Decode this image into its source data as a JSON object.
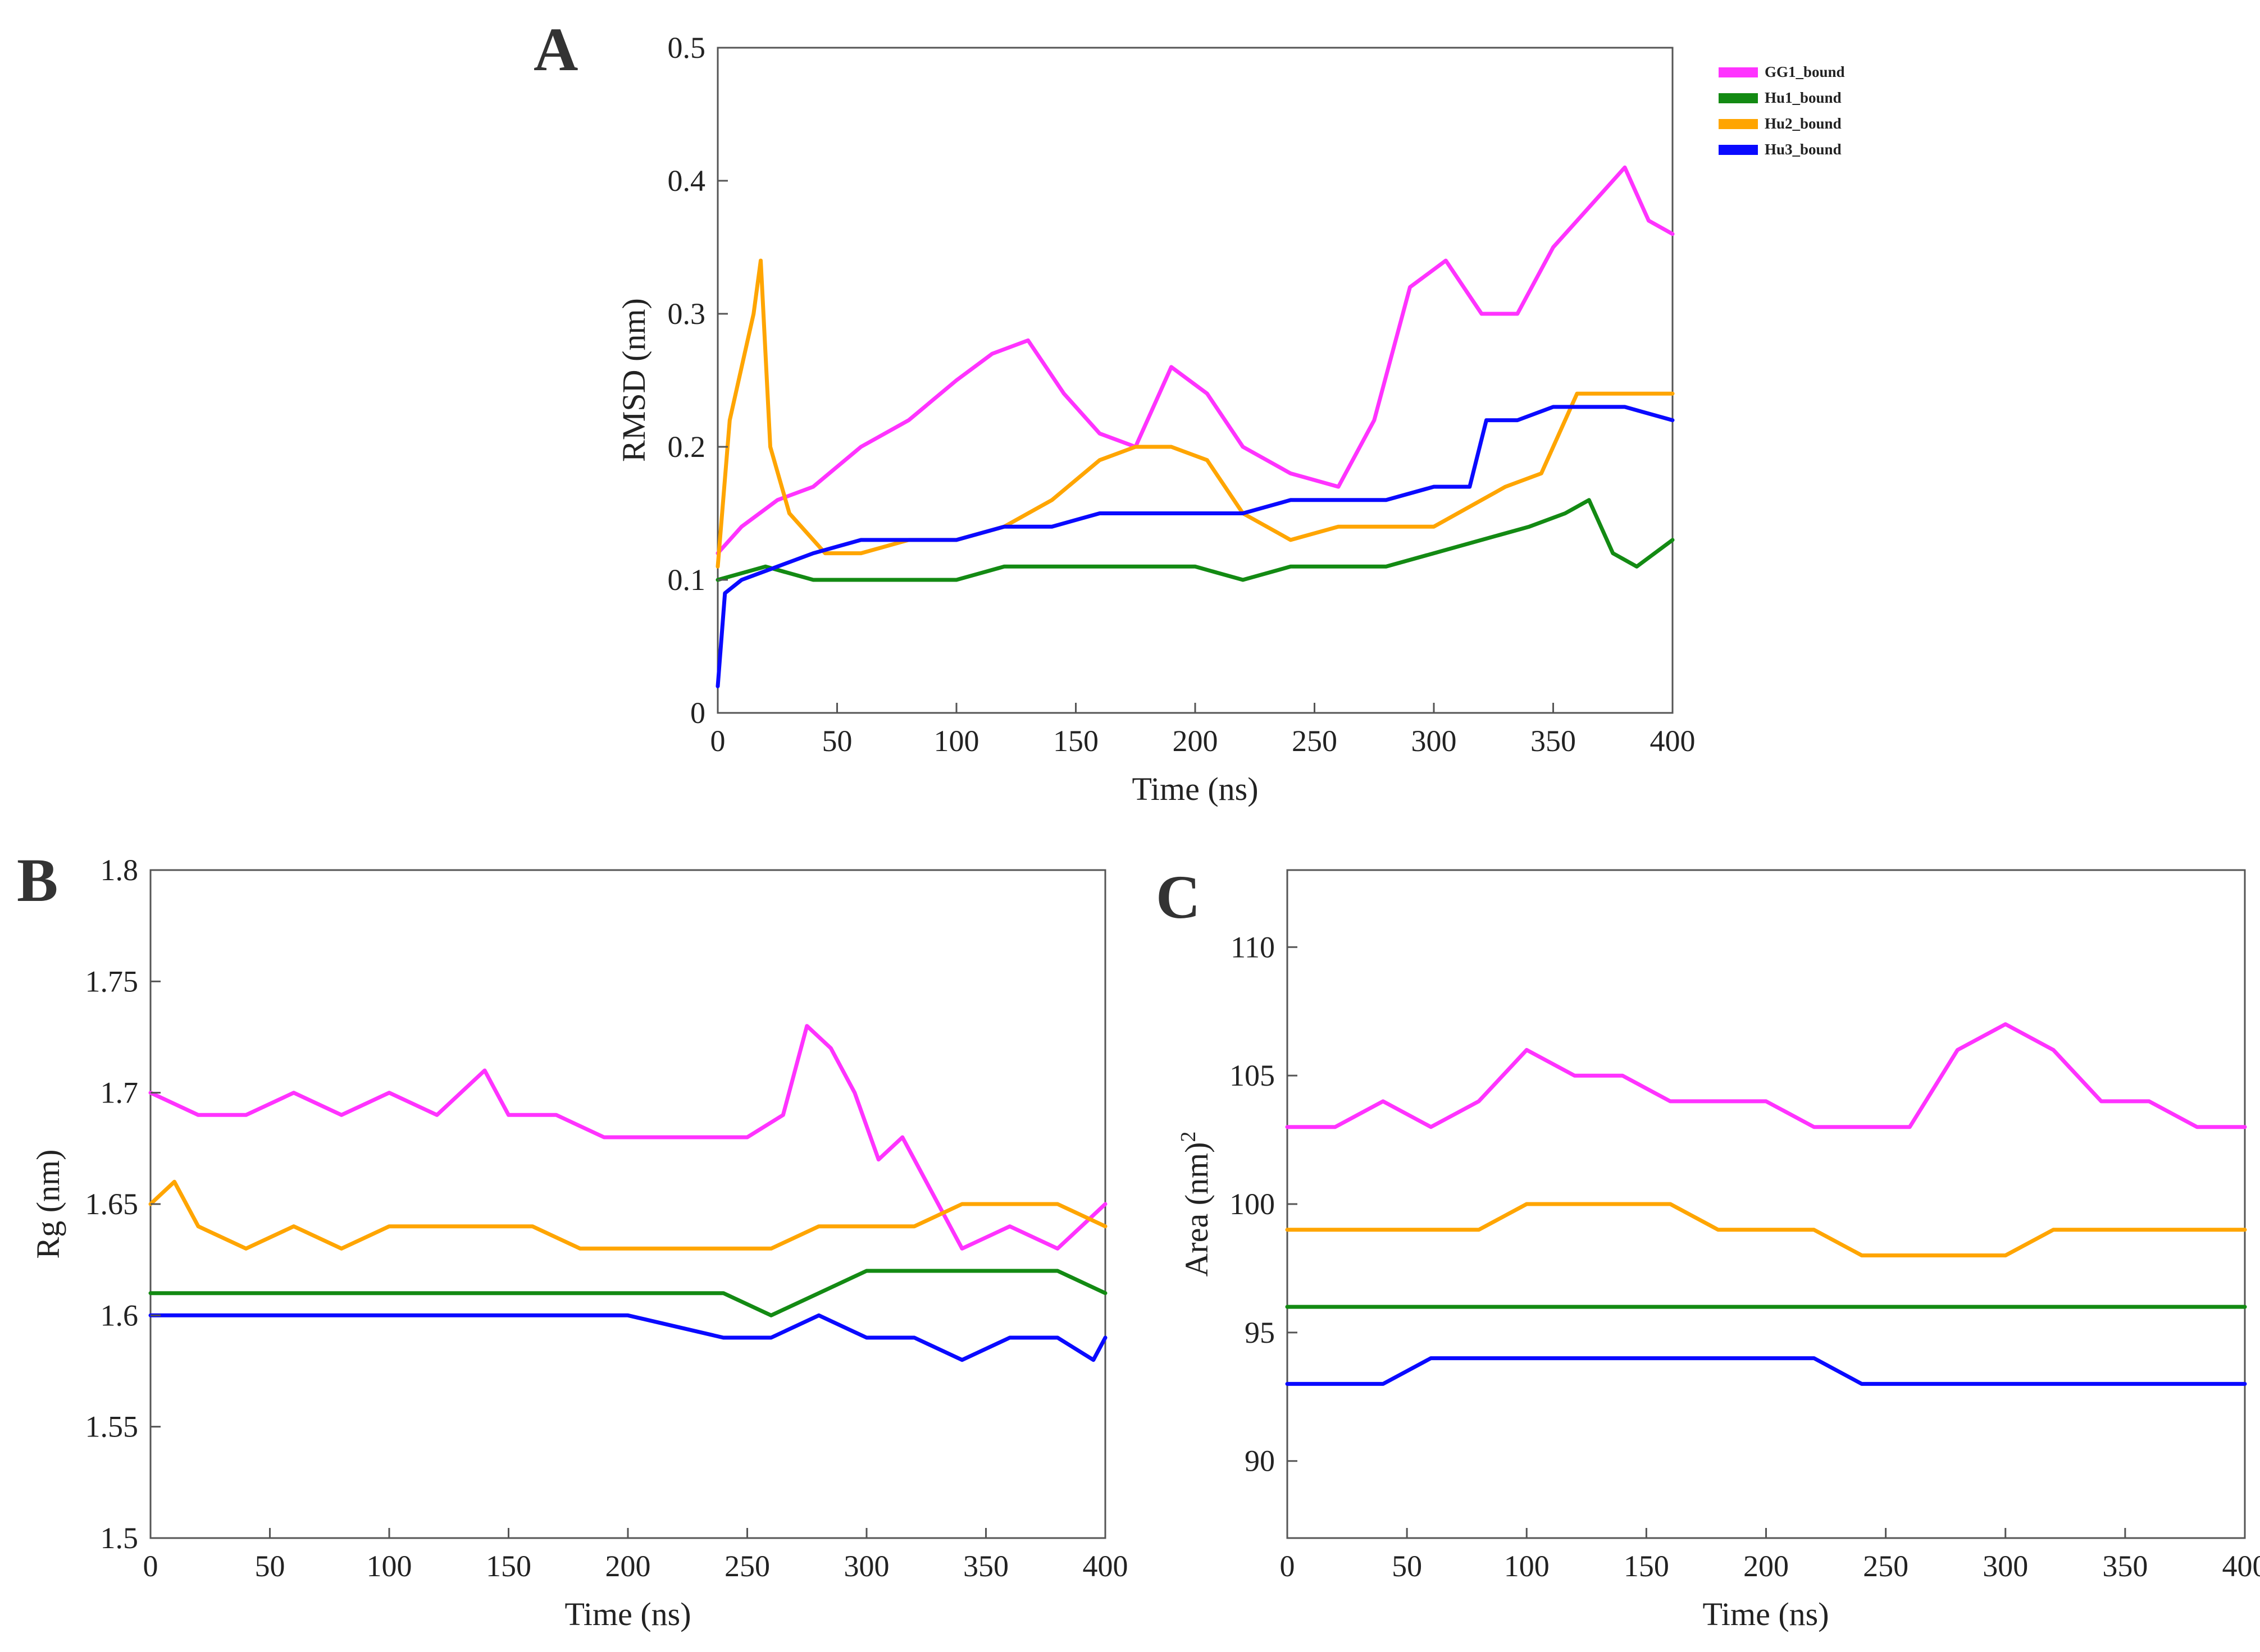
{
  "panels": [
    {
      "letter": "A",
      "chart_data": {
        "type": "line",
        "xlabel": "Time (ns)",
        "ylabel": "RMSD (nm)",
        "xlim": [
          0,
          400
        ],
        "ylim": [
          0,
          0.5
        ],
        "xticks": [
          "0",
          "50",
          "100",
          "150",
          "200",
          "250",
          "300",
          "350",
          "400"
        ],
        "yticks": [
          "0",
          "0.1",
          "0.2",
          "0.3",
          "0.4",
          "0.5"
        ],
        "legend_position": "outside-top-right",
        "series": [
          {
            "name": "GG1_bound",
            "color": "#ff33ff",
            "x": [
              0,
              10,
              25,
              40,
              60,
              80,
              100,
              115,
              130,
              145,
              160,
              175,
              190,
              205,
              220,
              240,
              260,
              275,
              290,
              305,
              320,
              335,
              350,
              365,
              380,
              390,
              400
            ],
            "y": [
              0.12,
              0.14,
              0.16,
              0.17,
              0.2,
              0.22,
              0.25,
              0.27,
              0.28,
              0.24,
              0.21,
              0.2,
              0.26,
              0.24,
              0.2,
              0.18,
              0.17,
              0.22,
              0.32,
              0.34,
              0.3,
              0.3,
              0.35,
              0.38,
              0.41,
              0.37,
              0.36
            ]
          },
          {
            "name": "Hu1_bound",
            "color": "#138a13",
            "x": [
              0,
              20,
              40,
              60,
              80,
              100,
              120,
              140,
              160,
              180,
              200,
              220,
              240,
              260,
              280,
              300,
              320,
              340,
              355,
              365,
              375,
              385,
              400
            ],
            "y": [
              0.1,
              0.11,
              0.1,
              0.1,
              0.1,
              0.1,
              0.11,
              0.11,
              0.11,
              0.11,
              0.11,
              0.1,
              0.11,
              0.11,
              0.11,
              0.12,
              0.13,
              0.14,
              0.15,
              0.16,
              0.12,
              0.11,
              0.13
            ]
          },
          {
            "name": "Hu2_bound",
            "color": "#ffa500",
            "x": [
              0,
              5,
              10,
              15,
              18,
              22,
              30,
              45,
              60,
              80,
              100,
              120,
              140,
              160,
              175,
              190,
              205,
              220,
              240,
              260,
              280,
              300,
              320,
              330,
              345,
              360,
              375,
              390,
              400
            ],
            "y": [
              0.11,
              0.22,
              0.26,
              0.3,
              0.34,
              0.2,
              0.15,
              0.12,
              0.12,
              0.13,
              0.13,
              0.14,
              0.16,
              0.19,
              0.2,
              0.2,
              0.19,
              0.15,
              0.13,
              0.14,
              0.14,
              0.14,
              0.16,
              0.17,
              0.18,
              0.24,
              0.24,
              0.24,
              0.24
            ]
          },
          {
            "name": "Hu3_bound",
            "color": "#0a0aff",
            "x": [
              0,
              3,
              10,
              25,
              40,
              60,
              80,
              100,
              120,
              140,
              160,
              180,
              200,
              220,
              240,
              260,
              280,
              300,
              315,
              322,
              335,
              350,
              365,
              380,
              400
            ],
            "y": [
              0.02,
              0.09,
              0.1,
              0.11,
              0.12,
              0.13,
              0.13,
              0.13,
              0.14,
              0.14,
              0.15,
              0.15,
              0.15,
              0.15,
              0.16,
              0.16,
              0.16,
              0.17,
              0.17,
              0.22,
              0.22,
              0.23,
              0.23,
              0.23,
              0.22
            ]
          }
        ]
      }
    },
    {
      "letter": "B",
      "chart_data": {
        "type": "line",
        "xlabel": "Time (ns)",
        "ylabel": "Rg (nm)",
        "xlim": [
          0,
          400
        ],
        "ylim": [
          1.5,
          1.8
        ],
        "xticks": [
          "0",
          "50",
          "100",
          "150",
          "200",
          "250",
          "300",
          "350",
          "400"
        ],
        "yticks": [
          "1.5",
          "1.55",
          "1.6",
          "1.65",
          "1.7",
          "1.75",
          "1.8"
        ],
        "series": [
          {
            "name": "GG1_bound",
            "color": "#ff33ff",
            "x": [
              0,
              20,
              40,
              60,
              80,
              100,
              120,
              140,
              150,
              170,
              190,
              210,
              230,
              250,
              265,
              275,
              285,
              295,
              305,
              315,
              325,
              340,
              360,
              380,
              390,
              400
            ],
            "y": [
              1.7,
              1.69,
              1.69,
              1.7,
              1.69,
              1.7,
              1.69,
              1.71,
              1.69,
              1.69,
              1.68,
              1.68,
              1.68,
              1.68,
              1.69,
              1.73,
              1.72,
              1.7,
              1.67,
              1.68,
              1.66,
              1.63,
              1.64,
              1.63,
              1.64,
              1.65
            ]
          },
          {
            "name": "Hu1_bound",
            "color": "#138a13",
            "x": [
              0,
              40,
              80,
              120,
              160,
              200,
              240,
              260,
              280,
              300,
              320,
              340,
              360,
              380,
              400
            ],
            "y": [
              1.61,
              1.61,
              1.61,
              1.61,
              1.61,
              1.61,
              1.61,
              1.6,
              1.61,
              1.62,
              1.62,
              1.62,
              1.62,
              1.62,
              1.61
            ]
          },
          {
            "name": "Hu2_bound",
            "color": "#ffa500",
            "x": [
              0,
              10,
              20,
              40,
              60,
              80,
              100,
              120,
              140,
              160,
              180,
              200,
              220,
              240,
              260,
              280,
              300,
              320,
              340,
              360,
              380,
              400
            ],
            "y": [
              1.65,
              1.66,
              1.64,
              1.63,
              1.64,
              1.63,
              1.64,
              1.64,
              1.64,
              1.64,
              1.63,
              1.63,
              1.63,
              1.63,
              1.63,
              1.64,
              1.64,
              1.64,
              1.65,
              1.65,
              1.65,
              1.64
            ]
          },
          {
            "name": "Hu3_bound",
            "color": "#0a0aff",
            "x": [
              0,
              40,
              80,
              120,
              160,
              200,
              240,
              260,
              280,
              300,
              320,
              340,
              360,
              380,
              395,
              400
            ],
            "y": [
              1.6,
              1.6,
              1.6,
              1.6,
              1.6,
              1.6,
              1.59,
              1.59,
              1.6,
              1.59,
              1.59,
              1.58,
              1.59,
              1.59,
              1.58,
              1.59
            ]
          }
        ]
      }
    },
    {
      "letter": "C",
      "chart_data": {
        "type": "line",
        "xlabel": "Time (ns)",
        "ylabel": "Area (nm)",
        "ylabel_superscript": "2",
        "xlim": [
          0,
          400
        ],
        "ylim": [
          87,
          113
        ],
        "xticks": [
          "0",
          "50",
          "100",
          "150",
          "200",
          "250",
          "300",
          "350",
          "400"
        ],
        "yticks": [
          "90",
          "95",
          "100",
          "105",
          "110"
        ],
        "ytick_values": [
          90,
          95,
          100,
          105,
          110
        ],
        "series": [
          {
            "name": "GG1_bound",
            "color": "#ff33ff",
            "x": [
              0,
              20,
              40,
              60,
              80,
              100,
              120,
              140,
              160,
              180,
              200,
              220,
              240,
              260,
              280,
              300,
              320,
              340,
              360,
              380,
              400
            ],
            "y": [
              103,
              103,
              104,
              103,
              104,
              106,
              105,
              105,
              104,
              104,
              104,
              103,
              103,
              103,
              106,
              107,
              106,
              104,
              104,
              103,
              103
            ]
          },
          {
            "name": "Hu1_bound",
            "color": "#138a13",
            "x": [
              0,
              40,
              80,
              120,
              160,
              200,
              240,
              280,
              320,
              360,
              400
            ],
            "y": [
              96,
              96,
              96,
              96,
              96,
              96,
              96,
              96,
              96,
              96,
              96
            ]
          },
          {
            "name": "Hu2_bound",
            "color": "#ffa500",
            "x": [
              0,
              20,
              40,
              60,
              80,
              100,
              120,
              140,
              160,
              180,
              200,
              220,
              240,
              260,
              280,
              300,
              320,
              340,
              360,
              380,
              400
            ],
            "y": [
              99,
              99,
              99,
              99,
              99,
              100,
              100,
              100,
              100,
              99,
              99,
              99,
              98,
              98,
              98,
              98,
              99,
              99,
              99,
              99,
              99
            ]
          },
          {
            "name": "Hu3_bound",
            "color": "#0a0aff",
            "x": [
              0,
              20,
              40,
              60,
              80,
              100,
              120,
              140,
              160,
              180,
              200,
              220,
              240,
              260,
              280,
              300,
              320,
              340,
              360,
              380,
              400
            ],
            "y": [
              93,
              93,
              93,
              94,
              94,
              94,
              94,
              94,
              94,
              94,
              94,
              94,
              93,
              93,
              93,
              93,
              93,
              93,
              93,
              93,
              93
            ]
          }
        ]
      }
    }
  ]
}
